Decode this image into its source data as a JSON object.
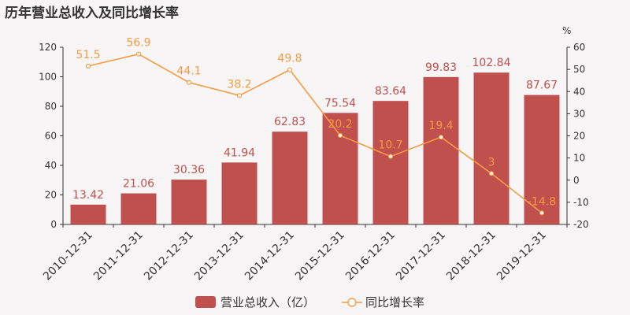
{
  "title": "历年营业总收入及同比增长率",
  "chart_data": {
    "type": "bar",
    "title": "历年营业总收入及同比增长率",
    "categories": [
      "2010-12-31",
      "2011-12-31",
      "2012-12-31",
      "2013-12-31",
      "2014-12-31",
      "2015-12-31",
      "2016-12-31",
      "2017-12-31",
      "2018-12-31",
      "2019-12-31"
    ],
    "series": [
      {
        "name": "营业总收入（亿）",
        "type": "bar",
        "axis": "left",
        "color": "#c0504d",
        "values": [
          13.42,
          21.06,
          30.36,
          41.94,
          62.83,
          75.54,
          83.64,
          99.83,
          102.84,
          87.67
        ],
        "labels": [
          "13.42",
          "21.06",
          "30.36",
          "41.94",
          "62.83",
          "75.54",
          "83.64",
          "99.83",
          "102.84",
          "87.67"
        ]
      },
      {
        "name": "同比增长率",
        "type": "line",
        "axis": "right",
        "color": "#f59b42",
        "values": [
          51.5,
          56.9,
          44.1,
          38.2,
          49.8,
          20.2,
          10.7,
          19.4,
          3,
          -14.8
        ],
        "labels": [
          "51.5",
          "56.9",
          "44.1",
          "38.2",
          "49.8",
          "20.2",
          "10.7",
          "19.4",
          "3",
          "-14.8"
        ]
      }
    ],
    "y_left": {
      "min": 0,
      "max": 120,
      "step": 20,
      "ticks": [
        "0",
        "20",
        "40",
        "60",
        "80",
        "100",
        "120"
      ]
    },
    "y_right": {
      "min": -20,
      "max": 60,
      "step": 10,
      "unit": "%",
      "ticks": [
        "-20",
        "-10",
        "0",
        "10",
        "20",
        "30",
        "40",
        "50",
        "60"
      ]
    },
    "legend": {
      "position": "bottom-center"
    },
    "grid": false
  }
}
